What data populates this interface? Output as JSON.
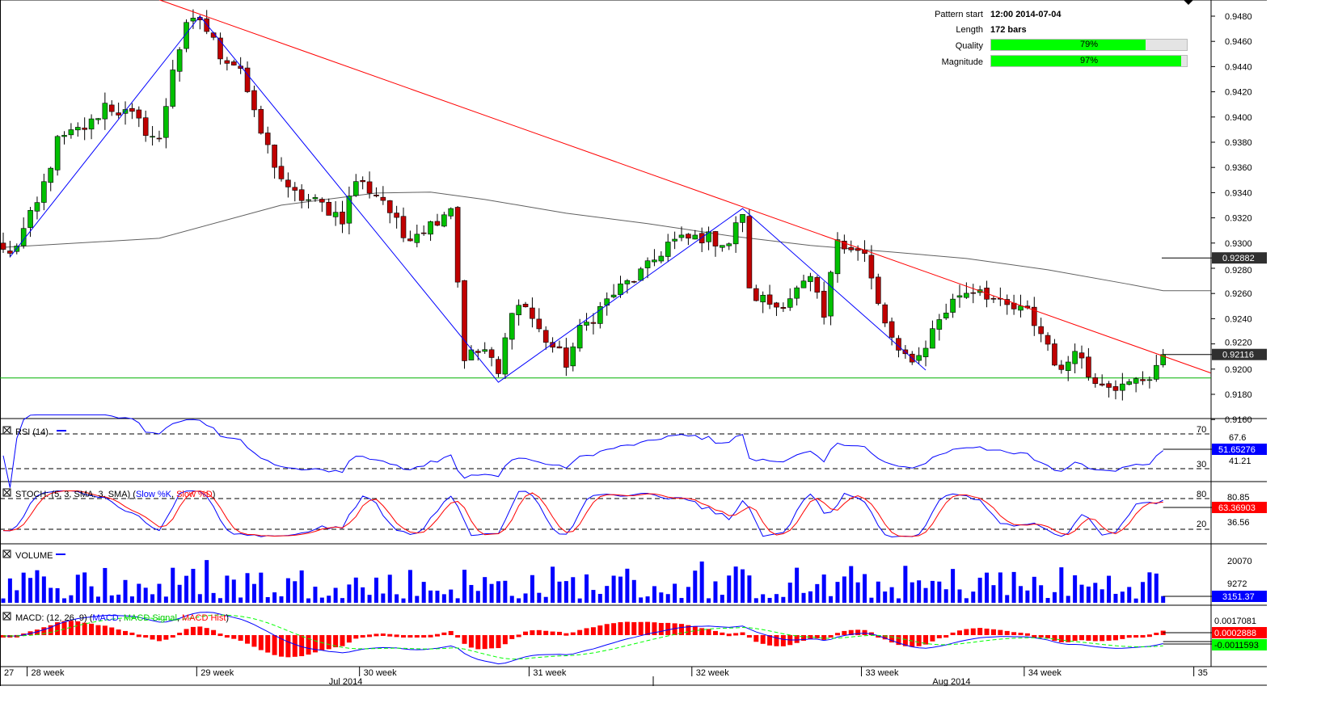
{
  "pattern_info": {
    "pattern_start_label": "Pattern start",
    "pattern_start_value": "12:00 2014-07-04",
    "length_label": "Length",
    "length_value": "172 bars",
    "quality_label": "Quality",
    "quality_value": "79%",
    "quality_fraction": 0.79,
    "magnitude_label": "Magnitude",
    "magnitude_value": "97%",
    "magnitude_fraction": 0.97
  },
  "colors": {
    "up": "#00c000",
    "down": "#c00000",
    "trend": "#ff0000",
    "zigzag": "#0000ff",
    "ma": "#606060",
    "support": "#00b000",
    "rsi": "#0000ff",
    "k": "#0000ff",
    "d": "#ff0000",
    "volume": "#0000ff",
    "macd": "#0000ff",
    "signal": "#00ff00",
    "hist": "#ff0000"
  },
  "chart_data": {
    "type": "candlestick",
    "bars": 172,
    "close_keypoints": [
      [
        0,
        0.9295
      ],
      [
        1,
        0.929
      ],
      [
        5,
        0.933
      ],
      [
        8,
        0.938
      ],
      [
        13,
        0.9395
      ],
      [
        15,
        0.941
      ],
      [
        19,
        0.94
      ],
      [
        23,
        0.938
      ],
      [
        25,
        0.944
      ],
      [
        27,
        0.947
      ],
      [
        29,
        0.9478
      ],
      [
        32,
        0.945
      ],
      [
        35,
        0.944
      ],
      [
        37,
        0.94
      ],
      [
        39,
        0.9375
      ],
      [
        42,
        0.934
      ],
      [
        47,
        0.933
      ],
      [
        50,
        0.932
      ],
      [
        52,
        0.935
      ],
      [
        56,
        0.9335
      ],
      [
        59,
        0.9305
      ],
      [
        63,
        0.9315
      ],
      [
        66,
        0.933
      ],
      [
        67,
        0.927
      ],
      [
        68,
        0.921
      ],
      [
        71,
        0.9215
      ],
      [
        73,
        0.9195
      ],
      [
        75,
        0.925
      ],
      [
        77,
        0.925
      ],
      [
        79,
        0.923
      ],
      [
        83,
        0.9205
      ],
      [
        85,
        0.923
      ],
      [
        90,
        0.926
      ],
      [
        95,
        0.928
      ],
      [
        98,
        0.93
      ],
      [
        103,
        0.9305
      ],
      [
        107,
        0.93
      ],
      [
        109,
        0.9325
      ],
      [
        110,
        0.926
      ],
      [
        114,
        0.925
      ],
      [
        119,
        0.927
      ],
      [
        121,
        0.924
      ],
      [
        123,
        0.9305
      ],
      [
        127,
        0.929
      ],
      [
        129,
        0.925
      ],
      [
        132,
        0.921
      ],
      [
        135,
        0.921
      ],
      [
        138,
        0.924
      ],
      [
        141,
        0.926
      ],
      [
        144,
        0.9265
      ],
      [
        147,
        0.925
      ],
      [
        151,
        0.9245
      ],
      [
        154,
        0.922
      ],
      [
        156,
        0.9195
      ],
      [
        158,
        0.922
      ],
      [
        160,
        0.9195
      ],
      [
        163,
        0.919
      ],
      [
        165,
        0.9185
      ],
      [
        169,
        0.9195
      ],
      [
        171,
        0.92116
      ]
    ],
    "moving_average_keypoints": [
      [
        0,
        0.92966
      ],
      [
        23,
        0.93038
      ],
      [
        41,
        0.93301
      ],
      [
        55,
        0.93397
      ],
      [
        63,
        0.93404
      ],
      [
        71,
        0.93346
      ],
      [
        83,
        0.93237
      ],
      [
        95,
        0.93154
      ],
      [
        107,
        0.93058
      ],
      [
        119,
        0.92981
      ],
      [
        131,
        0.92929
      ],
      [
        142,
        0.92878
      ],
      [
        154,
        0.92788
      ],
      [
        166,
        0.92673
      ],
      [
        171,
        0.92622
      ],
      [
        178,
        0.92622
      ]
    ],
    "trendline": [
      [
        23,
        0.9493
      ],
      [
        178,
        0.9197
      ]
    ],
    "support_level": 0.9193,
    "zigzag": [
      [
        1,
        0.9289
      ],
      [
        29,
        0.948
      ],
      [
        73,
        0.91896
      ],
      [
        109,
        0.93274
      ],
      [
        136,
        0.91992
      ]
    ],
    "price_axis": {
      "ticks": [
        "0.9480",
        "0.9460",
        "0.9440",
        "0.9420",
        "0.9400",
        "0.9380",
        "0.9360",
        "0.9340",
        "0.9320",
        "0.9300",
        "0.9280",
        "0.9260",
        "0.9240",
        "0.9220",
        "0.9200",
        "0.9180",
        "0.9160"
      ],
      "range": [
        0.916,
        0.949
      ]
    },
    "current_price_label": "0.92116",
    "ma_label": "0.92882",
    "x_axis": {
      "week_labels": [
        {
          "bar": 0,
          "label": "27"
        },
        {
          "bar": 4,
          "label": "28 week"
        },
        {
          "bar": 29,
          "label": "29 week"
        },
        {
          "bar": 53,
          "label": "30 week"
        },
        {
          "bar": 78,
          "label": "31 week"
        },
        {
          "bar": 102,
          "label": "32 week"
        },
        {
          "bar": 127,
          "label": "33 week"
        },
        {
          "bar": 151,
          "label": "34 week"
        },
        {
          "bar": 176,
          "label": "35"
        }
      ],
      "month_labels": [
        {
          "bar": 48,
          "label": "Jul 2014"
        },
        {
          "bar": 137,
          "label": "Aug 2014"
        }
      ]
    },
    "rsi": {
      "title": "RSI (14)",
      "levels": [
        "70",
        "30"
      ],
      "labels": [
        "70",
        "67.6",
        "30",
        "41.21"
      ],
      "current": "51.65276"
    },
    "stoch": {
      "title_prefix": "STOCH: (5, 3, SMA, 3, SMA) (",
      "k_name": "Slow %K",
      "sep": ", ",
      "d_name": "Slow %D",
      "title_suffix": ")",
      "labels": [
        "80",
        "80.85",
        "20",
        "36.56"
      ],
      "current": "63.36903"
    },
    "volume": {
      "title": "VOLUME",
      "labels": [
        "20070",
        "9272"
      ],
      "current": "3151.37"
    },
    "macd": {
      "title_prefix": "MACD: (12, 26, 9) (",
      "macd_name": "MACD",
      "sep": ", ",
      "signal_name": "MACD Signal",
      "hist_name": "MACD Hist",
      "title_suffix": ")",
      "labels": [
        "0.0017081"
      ],
      "current_hist": "0.0002888",
      "current_signal": "-0.0011593"
    }
  }
}
